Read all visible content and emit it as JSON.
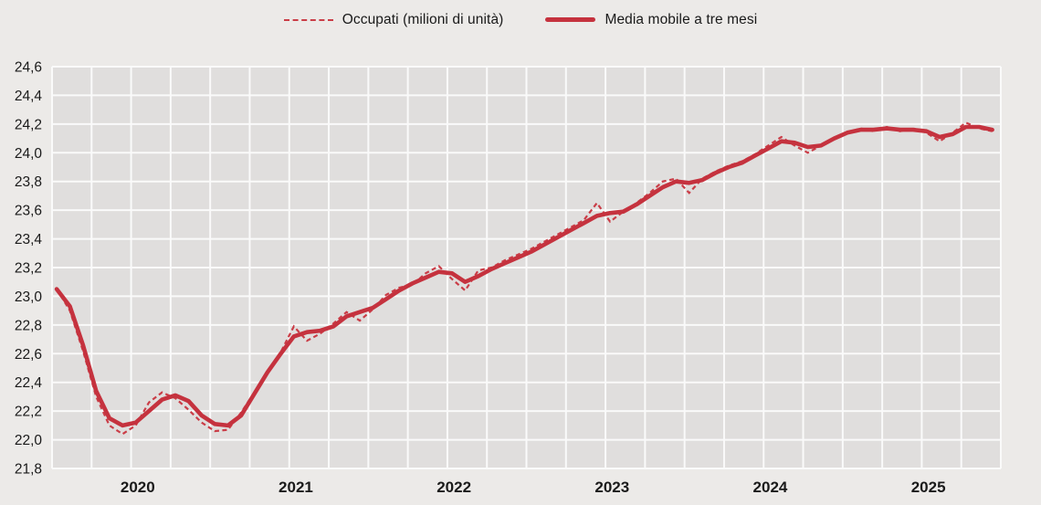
{
  "legend": {
    "items": [
      {
        "label": "Occupati (milioni di unità)",
        "style": "dashed"
      },
      {
        "label": "Media mobile a tre mesi",
        "style": "solid"
      }
    ]
  },
  "colors": {
    "page_bg": "#eceae8",
    "plot_bg": "#e0dedd",
    "grid": "#fafafa",
    "text": "#1a1a1a",
    "occupati_line": "#ca3d47",
    "media_mobile_line": "#c5323e"
  },
  "y_axis": {
    "min": 21.8,
    "max": 24.6,
    "step": 0.2,
    "tick_labels": [
      "24,6",
      "24,4",
      "24,2",
      "24,0",
      "23,8",
      "23,6",
      "23,4",
      "23,2",
      "23,0",
      "22,8",
      "22,6",
      "22,4",
      "22,2",
      "22,0",
      "21,8"
    ]
  },
  "x_axis": {
    "year_labels": [
      "2020",
      "2021",
      "2022",
      "2023",
      "2024",
      "2025"
    ],
    "gridline_interval_months": 3,
    "months_per_year": 12
  },
  "chart_data": {
    "type": "line",
    "title": "",
    "xlabel": "",
    "ylabel": "",
    "x_unit": "month",
    "start_year": 2020,
    "ylim": [
      21.8,
      24.6
    ],
    "grid": true,
    "legend_position": "top",
    "series": [
      {
        "name": "Occupati (milioni di unità)",
        "style": "dashed",
        "values": [
          23.05,
          22.9,
          22.62,
          22.3,
          22.1,
          22.04,
          22.1,
          22.26,
          22.33,
          22.29,
          22.21,
          22.12,
          22.06,
          22.07,
          22.19,
          22.33,
          22.47,
          22.61,
          22.79,
          22.69,
          22.74,
          22.81,
          22.89,
          22.83,
          22.91,
          23.01,
          23.06,
          23.08,
          23.16,
          23.21,
          23.12,
          23.04,
          23.18,
          23.2,
          23.25,
          23.29,
          23.33,
          23.38,
          23.43,
          23.48,
          23.53,
          23.65,
          23.52,
          23.59,
          23.65,
          23.72,
          23.8,
          23.82,
          23.72,
          23.82,
          23.87,
          23.91,
          23.94,
          23.99,
          24.05,
          24.11,
          24.05,
          24.0,
          24.05,
          24.1,
          24.14,
          24.17,
          24.15,
          24.18,
          24.15,
          24.17,
          24.14,
          24.08,
          24.14,
          24.21,
          24.17,
          24.15
        ]
      },
      {
        "name": "Media mobile a tre mesi",
        "style": "solid",
        "values": [
          23.05,
          22.93,
          22.66,
          22.34,
          22.15,
          22.1,
          22.12,
          22.2,
          22.28,
          22.31,
          22.27,
          22.17,
          22.11,
          22.1,
          22.17,
          22.32,
          22.47,
          22.6,
          22.72,
          22.75,
          22.76,
          22.79,
          22.86,
          22.89,
          22.92,
          22.98,
          23.04,
          23.09,
          23.13,
          23.17,
          23.16,
          23.1,
          23.14,
          23.19,
          23.23,
          23.27,
          23.31,
          23.36,
          23.41,
          23.46,
          23.51,
          23.56,
          23.58,
          23.59,
          23.64,
          23.7,
          23.76,
          23.8,
          23.79,
          23.81,
          23.86,
          23.9,
          23.93,
          23.98,
          24.03,
          24.08,
          24.07,
          24.04,
          24.05,
          24.1,
          24.14,
          24.16,
          24.16,
          24.17,
          24.16,
          24.16,
          24.15,
          24.11,
          24.13,
          24.18,
          24.18,
          24.16
        ]
      }
    ]
  }
}
